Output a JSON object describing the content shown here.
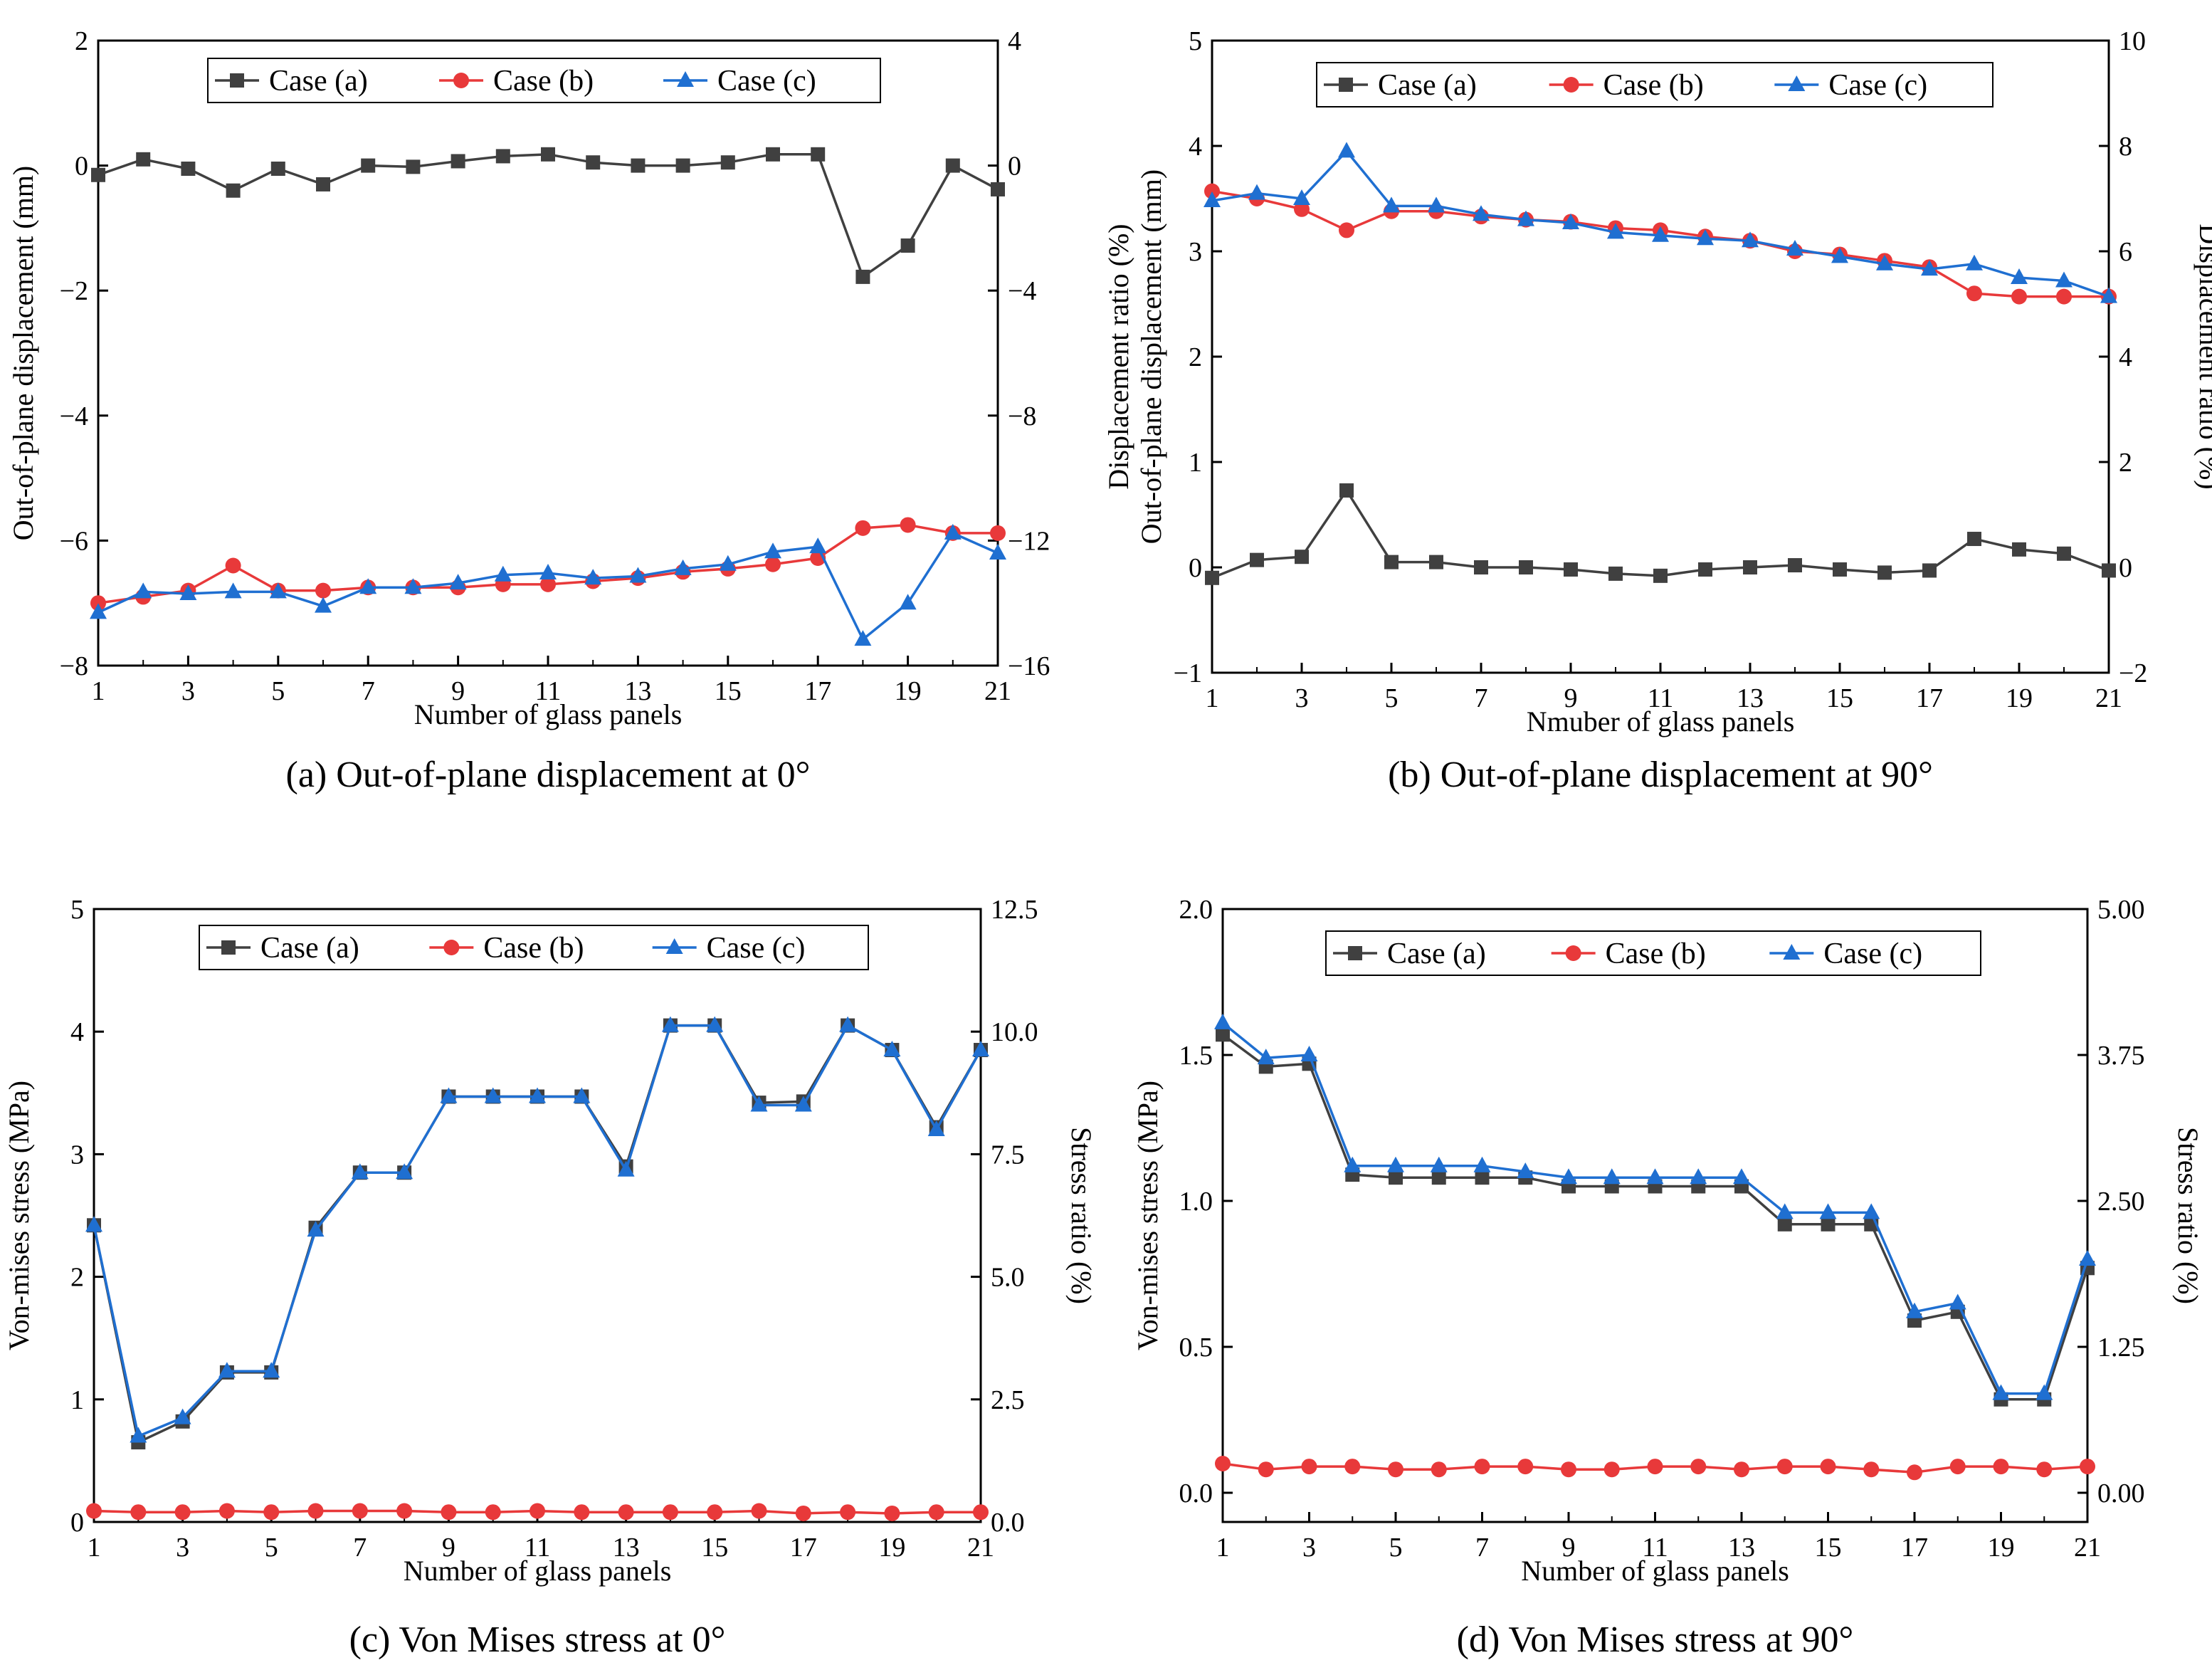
{
  "chart_data": [
    {
      "type": "line",
      "panel": "a",
      "caption": "(a) Out-of-plane displacement at 0°",
      "xlabel": "Number of glass panels",
      "ylabel": "Out-of-plane displacement (mm)",
      "ylabel_right": "",
      "x": [
        1,
        2,
        3,
        4,
        5,
        6,
        7,
        8,
        9,
        10,
        11,
        12,
        13,
        14,
        15,
        16,
        17,
        18,
        19,
        20,
        21
      ],
      "xticks": [
        1,
        3,
        5,
        7,
        9,
        11,
        13,
        15,
        17,
        19,
        21
      ],
      "xtick_labels": [
        "1",
        "3",
        "5",
        "7",
        "9",
        "11",
        "13",
        "15",
        "17",
        "19",
        "21"
      ],
      "xlim": [
        1,
        21
      ],
      "ylim": [
        -8,
        2
      ],
      "yticks": [
        -8,
        -6,
        -4,
        -2,
        0,
        2
      ],
      "ytick_labels": [
        "−8",
        "−6",
        "−4",
        "−2",
        "0",
        "2"
      ],
      "ylim_right": [
        -16,
        4
      ],
      "yticks_right": [
        -16,
        -12,
        -8,
        -4,
        0,
        4
      ],
      "ytick_labels_right": [
        "−16",
        "−12",
        "−8",
        "−4",
        "0",
        "4"
      ],
      "legend_position": "top-center",
      "series": [
        {
          "name": "Case (a)",
          "color": "#404040",
          "marker": "square",
          "values": [
            -0.15,
            0.1,
            -0.05,
            -0.4,
            -0.05,
            -0.3,
            0.0,
            -0.02,
            0.07,
            0.15,
            0.18,
            0.05,
            0.0,
            0.0,
            0.05,
            0.18,
            0.18,
            -1.78,
            -1.28,
            0.0,
            -0.38
          ]
        },
        {
          "name": "Case (b)",
          "color": "#e8393a",
          "marker": "circle",
          "values": [
            -7.0,
            -6.9,
            -6.8,
            -6.4,
            -6.8,
            -6.8,
            -6.75,
            -6.75,
            -6.75,
            -6.7,
            -6.7,
            -6.65,
            -6.6,
            -6.5,
            -6.45,
            -6.38,
            -6.28,
            -5.8,
            -5.75,
            -5.88,
            -5.88
          ]
        },
        {
          "name": "Case (c)",
          "color": "#1f6fd1",
          "marker": "triangle",
          "values": [
            -7.15,
            -6.82,
            -6.85,
            -6.82,
            -6.82,
            -7.05,
            -6.75,
            -6.75,
            -6.68,
            -6.55,
            -6.52,
            -6.6,
            -6.57,
            -6.45,
            -6.38,
            -6.18,
            -6.1,
            -7.58,
            -7.0,
            -5.88,
            -6.2
          ]
        }
      ]
    },
    {
      "type": "line",
      "panel": "b",
      "caption": "(b) Out-of-plane displacement at 90°",
      "xlabel": "Nmuber of glass panels",
      "ylabel": "Displacement ratio (%)",
      "ylabel_second_line": "Out-of-plane displacement (mm)",
      "ylabel_right": "Displacement ratio (%)",
      "x": [
        1,
        2,
        3,
        4,
        5,
        6,
        7,
        8,
        9,
        10,
        11,
        12,
        13,
        14,
        15,
        16,
        17,
        18,
        19,
        20,
        21
      ],
      "xticks": [
        1,
        3,
        5,
        7,
        9,
        11,
        13,
        15,
        17,
        19,
        21
      ],
      "xtick_labels": [
        "1",
        "3",
        "5",
        "7",
        "9",
        "11",
        "13",
        "15",
        "17",
        "19",
        "21"
      ],
      "xlim": [
        1,
        21
      ],
      "ylim": [
        -1,
        5
      ],
      "yticks": [
        -1,
        0,
        1,
        2,
        3,
        4,
        5
      ],
      "ytick_labels": [
        "−1",
        "0",
        "1",
        "2",
        "3",
        "4",
        "5"
      ],
      "ylim_right": [
        -2,
        10
      ],
      "yticks_right": [
        -2,
        0,
        2,
        4,
        6,
        8,
        10
      ],
      "ytick_labels_right": [
        "−2",
        "0",
        "2",
        "4",
        "6",
        "8",
        "10"
      ],
      "legend_position": "top-center",
      "series": [
        {
          "name": "Case (a)",
          "color": "#404040",
          "marker": "square",
          "values": [
            -0.1,
            0.07,
            0.1,
            0.73,
            0.05,
            0.05,
            0.0,
            0.0,
            -0.02,
            -0.06,
            -0.08,
            -0.02,
            0.0,
            0.02,
            -0.02,
            -0.05,
            -0.03,
            0.27,
            0.17,
            0.13,
            -0.03
          ]
        },
        {
          "name": "Case (b)",
          "color": "#e8393a",
          "marker": "circle",
          "values": [
            3.57,
            3.5,
            3.4,
            3.2,
            3.38,
            3.38,
            3.33,
            3.3,
            3.28,
            3.22,
            3.2,
            3.14,
            3.1,
            3.0,
            2.97,
            2.91,
            2.85,
            2.6,
            2.57,
            2.57,
            2.57
          ]
        },
        {
          "name": "Case (c)",
          "color": "#1f6fd1",
          "marker": "triangle",
          "values": [
            3.48,
            3.55,
            3.5,
            3.95,
            3.43,
            3.43,
            3.35,
            3.3,
            3.27,
            3.18,
            3.15,
            3.12,
            3.1,
            3.02,
            2.95,
            2.88,
            2.83,
            2.88,
            2.75,
            2.72,
            2.57
          ]
        }
      ]
    },
    {
      "type": "line",
      "panel": "c",
      "caption": "(c) Von Mises stress at 0°",
      "xlabel": "Number of glass panels",
      "ylabel": "Von-mises stress (MPa)",
      "ylabel_right": "Stress ratio (%)",
      "x": [
        1,
        2,
        3,
        4,
        5,
        6,
        7,
        8,
        9,
        10,
        11,
        12,
        13,
        14,
        15,
        16,
        17,
        18,
        19,
        20,
        21
      ],
      "xticks": [
        1,
        3,
        5,
        7,
        9,
        11,
        13,
        15,
        17,
        19,
        21
      ],
      "xtick_labels": [
        "1",
        "3",
        "5",
        "7",
        "9",
        "11",
        "13",
        "15",
        "17",
        "19",
        "21"
      ],
      "xlim": [
        1,
        21
      ],
      "ylim": [
        0,
        5
      ],
      "yticks": [
        0,
        1,
        2,
        3,
        4,
        5
      ],
      "ytick_labels": [
        "0",
        "1",
        "2",
        "3",
        "4",
        "5"
      ],
      "ylim_right": [
        0,
        12.5
      ],
      "yticks_right": [
        0,
        2.5,
        5,
        7.5,
        10,
        12.5
      ],
      "ytick_labels_right": [
        "0.0",
        "2.5",
        "5.0",
        "7.5",
        "10.0",
        "12.5"
      ],
      "legend_position": "top-center",
      "series": [
        {
          "name": "Case (a)",
          "color": "#404040",
          "marker": "square",
          "values": [
            2.42,
            0.65,
            0.82,
            1.22,
            1.22,
            2.4,
            2.85,
            2.85,
            3.47,
            3.47,
            3.47,
            3.47,
            2.9,
            4.05,
            4.05,
            3.42,
            3.43,
            4.05,
            3.85,
            3.22,
            3.85
          ]
        },
        {
          "name": "Case (b)",
          "color": "#e8393a",
          "marker": "circle",
          "values": [
            0.09,
            0.08,
            0.08,
            0.09,
            0.08,
            0.09,
            0.09,
            0.09,
            0.08,
            0.08,
            0.09,
            0.08,
            0.08,
            0.08,
            0.08,
            0.09,
            0.07,
            0.08,
            0.07,
            0.08,
            0.08
          ]
        },
        {
          "name": "Case (c)",
          "color": "#1f6fd1",
          "marker": "triangle",
          "values": [
            2.42,
            0.7,
            0.85,
            1.23,
            1.23,
            2.38,
            2.85,
            2.85,
            3.47,
            3.47,
            3.47,
            3.47,
            2.87,
            4.05,
            4.05,
            3.4,
            3.4,
            4.05,
            3.85,
            3.2,
            3.85
          ]
        }
      ]
    },
    {
      "type": "line",
      "panel": "d",
      "caption": "(d) Von Mises stress at 90°",
      "xlabel": "Number of glass panels",
      "ylabel": "Von-mises stress (MPa)",
      "ylabel_right": "Stress ratio (%)",
      "x": [
        1,
        2,
        3,
        4,
        5,
        6,
        7,
        8,
        9,
        10,
        11,
        12,
        13,
        14,
        15,
        16,
        17,
        18,
        19,
        20,
        21
      ],
      "xticks": [
        1,
        3,
        5,
        7,
        9,
        11,
        13,
        15,
        17,
        19,
        21
      ],
      "xtick_labels": [
        "1",
        "3",
        "5",
        "7",
        "9",
        "11",
        "13",
        "15",
        "17",
        "19",
        "21"
      ],
      "xlim": [
        1,
        21
      ],
      "ylim": [
        -0.1,
        2.0
      ],
      "yticks": [
        0,
        0.5,
        1.0,
        1.5,
        2.0
      ],
      "ytick_labels": [
        "0.0",
        "0.5",
        "1.0",
        "1.5",
        "2.0"
      ],
      "ylim_right": [
        -0.25,
        5.0
      ],
      "yticks_right": [
        0,
        1.25,
        2.5,
        3.75,
        5.0
      ],
      "ytick_labels_right": [
        "0.00",
        "1.25",
        "2.50",
        "3.75",
        "5.00"
      ],
      "legend_position": "top-center",
      "series": [
        {
          "name": "Case (a)",
          "color": "#404040",
          "marker": "square",
          "values": [
            1.57,
            1.46,
            1.47,
            1.09,
            1.08,
            1.08,
            1.08,
            1.08,
            1.05,
            1.05,
            1.05,
            1.05,
            1.05,
            0.92,
            0.92,
            0.92,
            0.59,
            0.62,
            0.32,
            0.32,
            0.77
          ]
        },
        {
          "name": "Case (b)",
          "color": "#e8393a",
          "marker": "circle",
          "values": [
            0.1,
            0.08,
            0.09,
            0.09,
            0.08,
            0.08,
            0.09,
            0.09,
            0.08,
            0.08,
            0.09,
            0.09,
            0.08,
            0.09,
            0.09,
            0.08,
            0.07,
            0.09,
            0.09,
            0.08,
            0.09
          ]
        },
        {
          "name": "Case (c)",
          "color": "#1f6fd1",
          "marker": "triangle",
          "values": [
            1.61,
            1.49,
            1.5,
            1.12,
            1.12,
            1.12,
            1.12,
            1.1,
            1.08,
            1.08,
            1.08,
            1.08,
            1.08,
            0.96,
            0.96,
            0.96,
            0.62,
            0.65,
            0.34,
            0.34,
            0.8
          ]
        }
      ]
    }
  ]
}
